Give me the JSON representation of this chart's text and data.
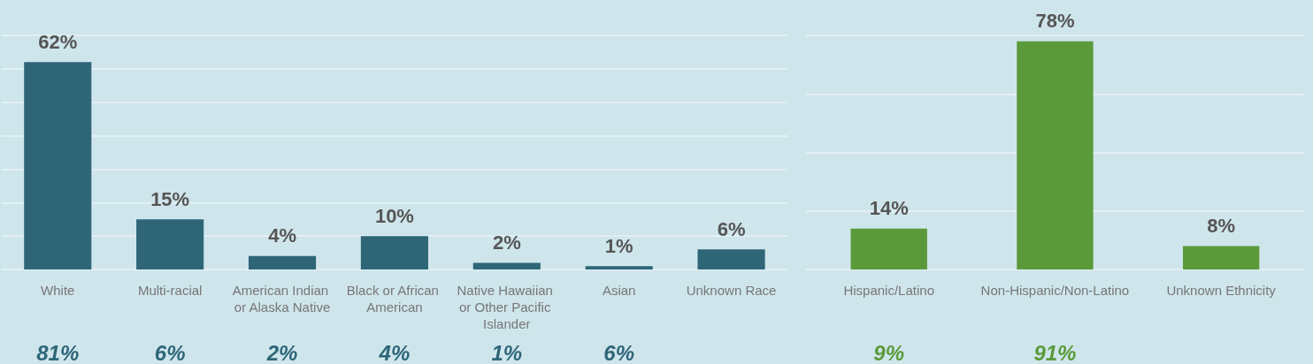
{
  "chart_data": [
    {
      "type": "bar",
      "categories": [
        "White",
        "Multi-racial",
        "American Indian or Alaska Native",
        "Black or African American",
        "Native Hawaiian or Other Pacific Islander",
        "Asian",
        "Unknown Race"
      ],
      "series": [
        {
          "color": "#2e6678",
          "values": [
            62,
            15,
            4,
            10,
            2,
            1,
            6
          ],
          "value_labels": [
            "62%",
            "15%",
            "4%",
            "10%",
            "2%",
            "1%",
            "6%"
          ]
        }
      ],
      "grid": "y",
      "tick_labels": "x",
      "annotations": [
        "81%",
        "6%",
        "2%",
        "4%",
        "1%",
        "6%"
      ]
    },
    {
      "type": "bar",
      "categories": [
        "Hispanic/Latino",
        "Non-Hispanic/Non-Latino",
        "Unknown Ethnicity"
      ],
      "series": [
        {
          "color": "#5a9a3a",
          "values": [
            14,
            78,
            8
          ],
          "value_labels": [
            "14%",
            "78%",
            "8%"
          ]
        }
      ],
      "grid": "y",
      "tick_labels": "x",
      "annotations": [
        "9%",
        "91%"
      ]
    }
  ]
}
